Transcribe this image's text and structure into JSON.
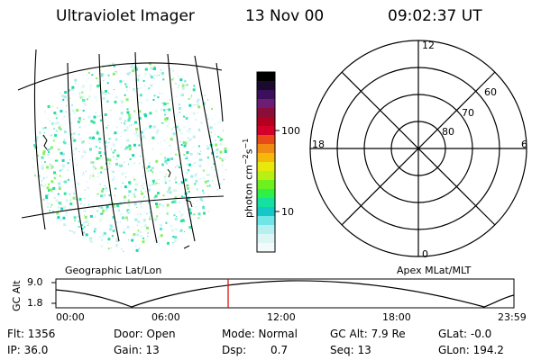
{
  "header": {
    "instrument": "Ultraviolet Imager",
    "date": "13 Nov 00",
    "time": "09:02:37 UT"
  },
  "colorbar": {
    "label_prefix": "photon cm",
    "label_exp1": "−2",
    "label_mid": "s",
    "label_exp2": "−1",
    "ticks": [
      "100",
      "10"
    ],
    "colors": [
      "#000000",
      "#1a0a2e",
      "#3b0f5c",
      "#6b1e73",
      "#8b0d3a",
      "#b3001e",
      "#d4002a",
      "#e84a1a",
      "#f08a12",
      "#f6b80a",
      "#e8e80a",
      "#b8f014",
      "#6ef01e",
      "#2ef046",
      "#14e0a0",
      "#14c8c8",
      "#6ee6e6",
      "#b4f0f0",
      "#dcf6f6",
      "#f4fafa"
    ]
  },
  "polar": {
    "mlt_top": "12",
    "mlt_bottom": "0",
    "mlt_left": "18",
    "mlt_right": "6",
    "lat_labels": [
      "60",
      "70",
      "80"
    ]
  },
  "panel_labels": {
    "left": "Geographic Lat/Lon",
    "right": "Apex MLat/MLT"
  },
  "timeline": {
    "ylabel": "GC Alt",
    "y_ticks": [
      "9.0",
      "1.8"
    ],
    "x_ticks": [
      "00:00",
      "06:00",
      "12:00",
      "18:00",
      "23:59"
    ],
    "current_time_fraction": 0.376
  },
  "status": {
    "row1": {
      "flt": "Flt: 1356",
      "door": "Door: Open",
      "mode": "Mode: Normal",
      "gc_alt": "GC Alt: 7.9 Re",
      "glat": "GLat:  -0.0"
    },
    "row2": {
      "ip": "IP: 36.0",
      "gain": "Gain: 13",
      "dsp_label": "Dsp:",
      "dsp_value": "0.7",
      "seq": "Seq: 13",
      "glon": "GLon: 194.2"
    }
  }
}
